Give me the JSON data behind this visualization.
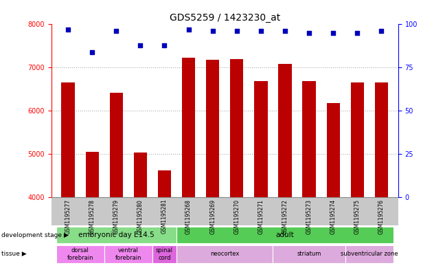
{
  "title": "GDS5259 / 1423230_at",
  "samples": [
    "GSM1195277",
    "GSM1195278",
    "GSM1195279",
    "GSM1195280",
    "GSM1195281",
    "GSM1195268",
    "GSM1195269",
    "GSM1195270",
    "GSM1195271",
    "GSM1195272",
    "GSM1195273",
    "GSM1195274",
    "GSM1195275",
    "GSM1195276"
  ],
  "counts": [
    6650,
    5040,
    6420,
    5030,
    4620,
    7220,
    7180,
    7200,
    6680,
    7080,
    6680,
    6170,
    6660,
    6660
  ],
  "percentiles": [
    97,
    84,
    96,
    88,
    88,
    97,
    96,
    96,
    96,
    96,
    95,
    95,
    95,
    96
  ],
  "ylim_left": [
    4000,
    8000
  ],
  "ylim_right": [
    0,
    100
  ],
  "yticks_left": [
    4000,
    5000,
    6000,
    7000,
    8000
  ],
  "yticks_right": [
    0,
    25,
    50,
    75,
    100
  ],
  "bar_color": "#bb0000",
  "dot_color": "#0000bb",
  "grid_color": "#aaaaaa",
  "bg_color": "#ffffff",
  "sample_bg_color": "#c8c8c8",
  "development_stages": [
    {
      "label": "embryonic day E14.5",
      "start": 0,
      "end": 5,
      "color": "#88dd88"
    },
    {
      "label": "adult",
      "start": 5,
      "end": 14,
      "color": "#55cc55"
    }
  ],
  "tissues": [
    {
      "label": "dorsal\nforebrain",
      "start": 0,
      "end": 2,
      "color": "#ee88ee"
    },
    {
      "label": "ventral\nforebrain",
      "start": 2,
      "end": 4,
      "color": "#ee88ee"
    },
    {
      "label": "spinal\ncord",
      "start": 4,
      "end": 5,
      "color": "#dd66dd"
    },
    {
      "label": "neocortex",
      "start": 5,
      "end": 9,
      "color": "#ddaadd"
    },
    {
      "label": "striatum",
      "start": 9,
      "end": 12,
      "color": "#ddaadd"
    },
    {
      "label": "subventricular zone",
      "start": 12,
      "end": 14,
      "color": "#ddaadd"
    }
  ],
  "dot_size": 22,
  "bar_width": 0.55
}
